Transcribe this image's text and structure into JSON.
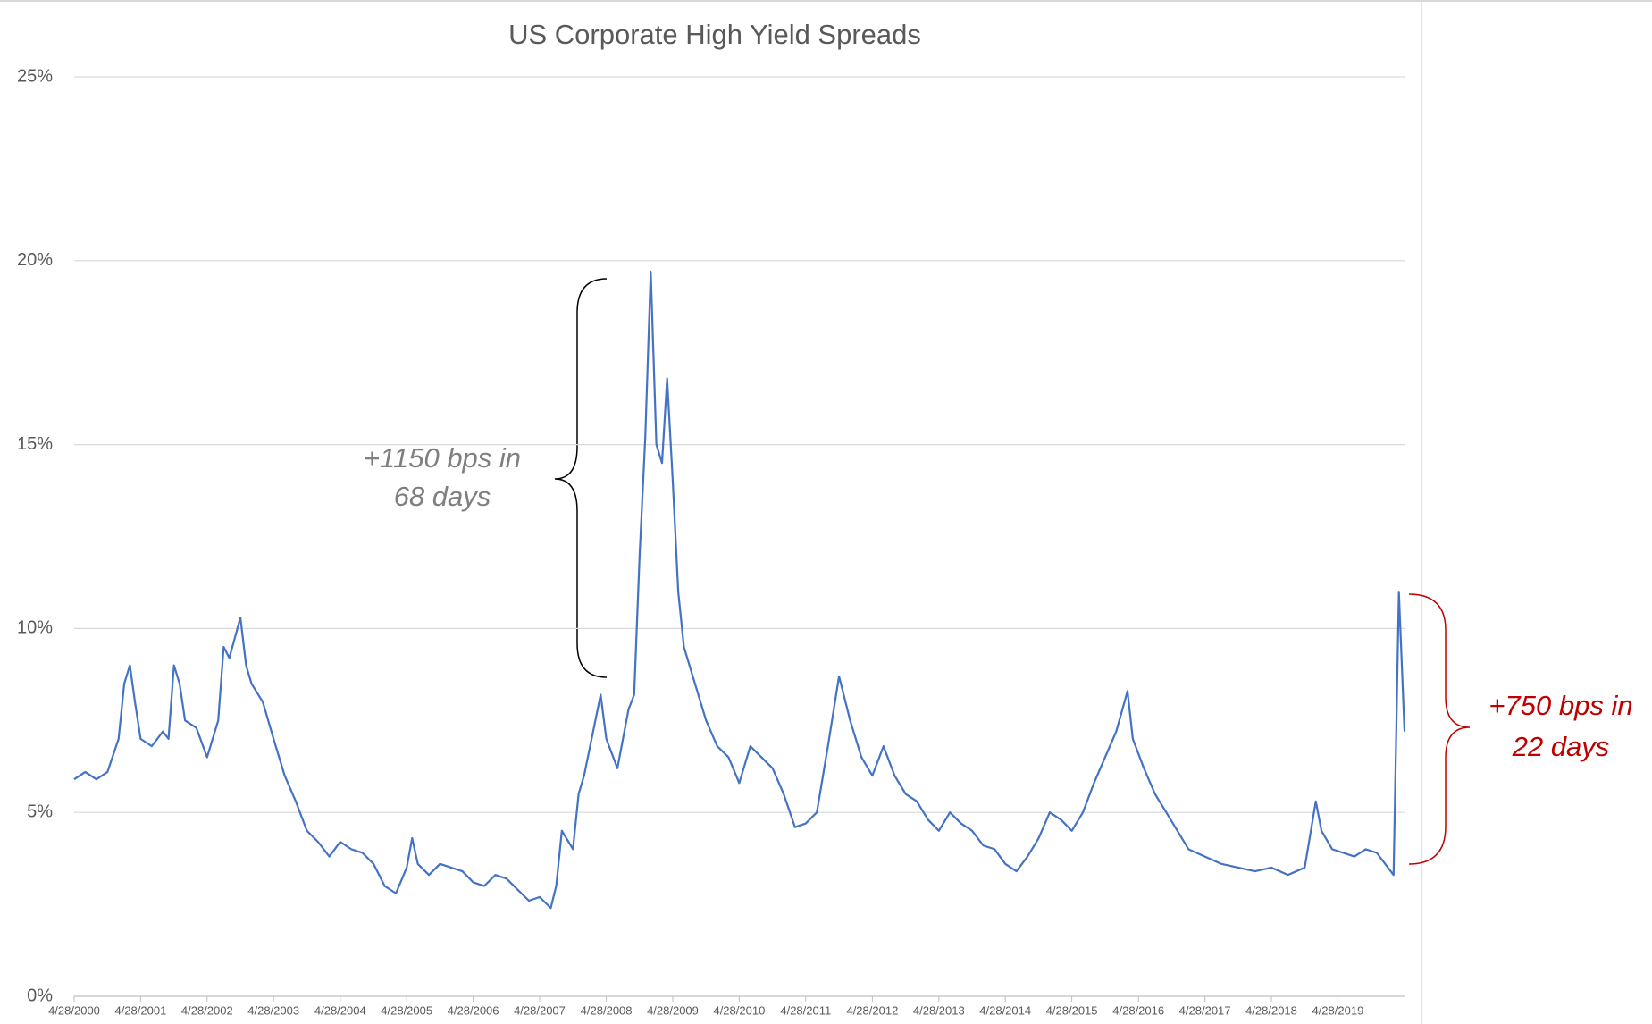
{
  "chart_data": {
    "type": "line",
    "title": "US Corporate High Yield Spreads",
    "color": "#4472c4",
    "grid": true,
    "x": [
      "2000-04-28",
      "2000-06-28",
      "2000-08-28",
      "2000-10-28",
      "2000-12-28",
      "2001-01-28",
      "2001-02-28",
      "2001-03-28",
      "2001-04-28",
      "2001-06-28",
      "2001-08-28",
      "2001-09-28",
      "2001-10-28",
      "2001-11-28",
      "2001-12-28",
      "2002-02-28",
      "2002-04-28",
      "2002-06-28",
      "2002-07-28",
      "2002-08-28",
      "2002-10-28",
      "2002-11-28",
      "2002-12-28",
      "2003-02-28",
      "2003-04-28",
      "2003-06-28",
      "2003-08-28",
      "2003-10-28",
      "2003-12-28",
      "2004-02-28",
      "2004-04-28",
      "2004-06-28",
      "2004-08-28",
      "2004-10-28",
      "2004-12-28",
      "2005-02-28",
      "2005-04-28",
      "2005-05-28",
      "2005-06-28",
      "2005-08-28",
      "2005-10-28",
      "2005-12-28",
      "2006-02-28",
      "2006-04-28",
      "2006-06-28",
      "2006-08-28",
      "2006-10-28",
      "2006-12-28",
      "2007-02-28",
      "2007-04-28",
      "2007-06-28",
      "2007-07-28",
      "2007-08-28",
      "2007-10-28",
      "2007-11-28",
      "2007-12-28",
      "2008-02-28",
      "2008-03-28",
      "2008-04-28",
      "2008-06-28",
      "2008-08-28",
      "2008-09-28",
      "2008-10-28",
      "2008-11-28",
      "2008-12-28",
      "2009-01-28",
      "2009-02-28",
      "2009-03-28",
      "2009-04-28",
      "2009-05-28",
      "2009-06-28",
      "2009-08-28",
      "2009-10-28",
      "2009-12-28",
      "2010-02-28",
      "2010-04-28",
      "2010-06-28",
      "2010-08-28",
      "2010-10-28",
      "2010-12-28",
      "2011-02-28",
      "2011-04-28",
      "2011-06-28",
      "2011-08-28",
      "2011-10-28",
      "2011-12-28",
      "2012-02-28",
      "2012-04-28",
      "2012-06-28",
      "2012-08-28",
      "2012-10-28",
      "2012-12-28",
      "2013-02-28",
      "2013-04-28",
      "2013-06-28",
      "2013-08-28",
      "2013-10-28",
      "2013-12-28",
      "2014-02-28",
      "2014-04-28",
      "2014-06-28",
      "2014-08-28",
      "2014-10-28",
      "2014-12-28",
      "2015-02-28",
      "2015-04-28",
      "2015-06-28",
      "2015-08-28",
      "2015-10-28",
      "2015-12-28",
      "2016-02-28",
      "2016-03-28",
      "2016-05-28",
      "2016-07-28",
      "2016-09-28",
      "2016-11-28",
      "2017-01-28",
      "2017-04-28",
      "2017-07-28",
      "2017-10-28",
      "2018-01-28",
      "2018-04-28",
      "2018-07-28",
      "2018-10-28",
      "2018-12-28",
      "2019-01-28",
      "2019-03-28",
      "2019-05-28",
      "2019-07-28",
      "2019-09-28",
      "2019-11-28",
      "2020-01-28",
      "2020-02-28",
      "2020-03-28",
      "2020-04-28"
    ],
    "values": [
      5.9,
      6.1,
      5.9,
      6.1,
      7.0,
      8.5,
      9.0,
      8.0,
      7.0,
      6.8,
      7.2,
      7.0,
      9.0,
      8.5,
      7.5,
      7.3,
      6.5,
      7.5,
      9.5,
      9.2,
      10.3,
      9.0,
      8.5,
      8.0,
      7.0,
      6.0,
      5.3,
      4.5,
      4.2,
      3.8,
      4.2,
      4.0,
      3.9,
      3.6,
      3.0,
      2.8,
      3.5,
      4.3,
      3.6,
      3.3,
      3.6,
      3.5,
      3.4,
      3.1,
      3.0,
      3.3,
      3.2,
      2.9,
      2.6,
      2.7,
      2.4,
      3.0,
      4.5,
      4.0,
      5.5,
      6.0,
      7.5,
      8.2,
      7.0,
      6.2,
      7.8,
      8.2,
      12.0,
      15.2,
      19.7,
      15.0,
      14.5,
      16.8,
      14.0,
      11.0,
      9.5,
      8.5,
      7.5,
      6.8,
      6.5,
      5.8,
      6.8,
      6.5,
      6.2,
      5.5,
      4.6,
      4.7,
      5.0,
      6.8,
      8.7,
      7.5,
      6.5,
      6.0,
      6.8,
      6.0,
      5.5,
      5.3,
      4.8,
      4.5,
      5.0,
      4.7,
      4.5,
      4.1,
      4.0,
      3.6,
      3.4,
      3.8,
      4.3,
      5.0,
      4.8,
      4.5,
      5.0,
      5.8,
      6.5,
      7.2,
      8.3,
      7.0,
      6.2,
      5.5,
      5.0,
      4.5,
      4.0,
      3.8,
      3.6,
      3.5,
      3.4,
      3.5,
      3.3,
      3.5,
      5.3,
      4.5,
      4.0,
      3.9,
      3.8,
      4.0,
      3.9,
      3.5,
      3.3,
      11.0,
      7.2
    ],
    "xlim": [
      "2000-04-28",
      "2020-04-28"
    ],
    "xticks": [
      {
        "value": "2000-04-28",
        "label": "4/28/2000"
      },
      {
        "value": "2001-04-28",
        "label": "4/28/2001"
      },
      {
        "value": "2002-04-28",
        "label": "4/28/2002"
      },
      {
        "value": "2003-04-28",
        "label": "4/28/2003"
      },
      {
        "value": "2004-04-28",
        "label": "4/28/2004"
      },
      {
        "value": "2005-04-28",
        "label": "4/28/2005"
      },
      {
        "value": "2006-04-28",
        "label": "4/28/2006"
      },
      {
        "value": "2007-04-28",
        "label": "4/28/2007"
      },
      {
        "value": "2008-04-28",
        "label": "4/28/2008"
      },
      {
        "value": "2009-04-28",
        "label": "4/28/2009"
      },
      {
        "value": "2010-04-28",
        "label": "4/28/2010"
      },
      {
        "value": "2011-04-28",
        "label": "4/28/2011"
      },
      {
        "value": "2012-04-28",
        "label": "4/28/2012"
      },
      {
        "value": "2013-04-28",
        "label": "4/28/2013"
      },
      {
        "value": "2014-04-28",
        "label": "4/28/2014"
      },
      {
        "value": "2015-04-28",
        "label": "4/28/2015"
      },
      {
        "value": "2016-04-28",
        "label": "4/28/2016"
      },
      {
        "value": "2017-04-28",
        "label": "4/28/2017"
      },
      {
        "value": "2018-04-28",
        "label": "4/28/2018"
      },
      {
        "value": "2019-04-28",
        "label": "4/28/2019"
      }
    ],
    "ylim": [
      0,
      25
    ],
    "yticks": [
      {
        "value": 0,
        "label": "0%"
      },
      {
        "value": 5,
        "label": "5%"
      },
      {
        "value": 10,
        "label": "10%"
      },
      {
        "value": 15,
        "label": "15%"
      },
      {
        "value": 20,
        "label": "20%"
      },
      {
        "value": 25,
        "label": "25%"
      }
    ],
    "annotations": [
      {
        "lines": [
          "+1150 bps in",
          "68 days"
        ],
        "color": "#7f7f7f"
      },
      {
        "lines": [
          "+750 bps in",
          "22 days"
        ],
        "color": "#c00000"
      }
    ]
  }
}
